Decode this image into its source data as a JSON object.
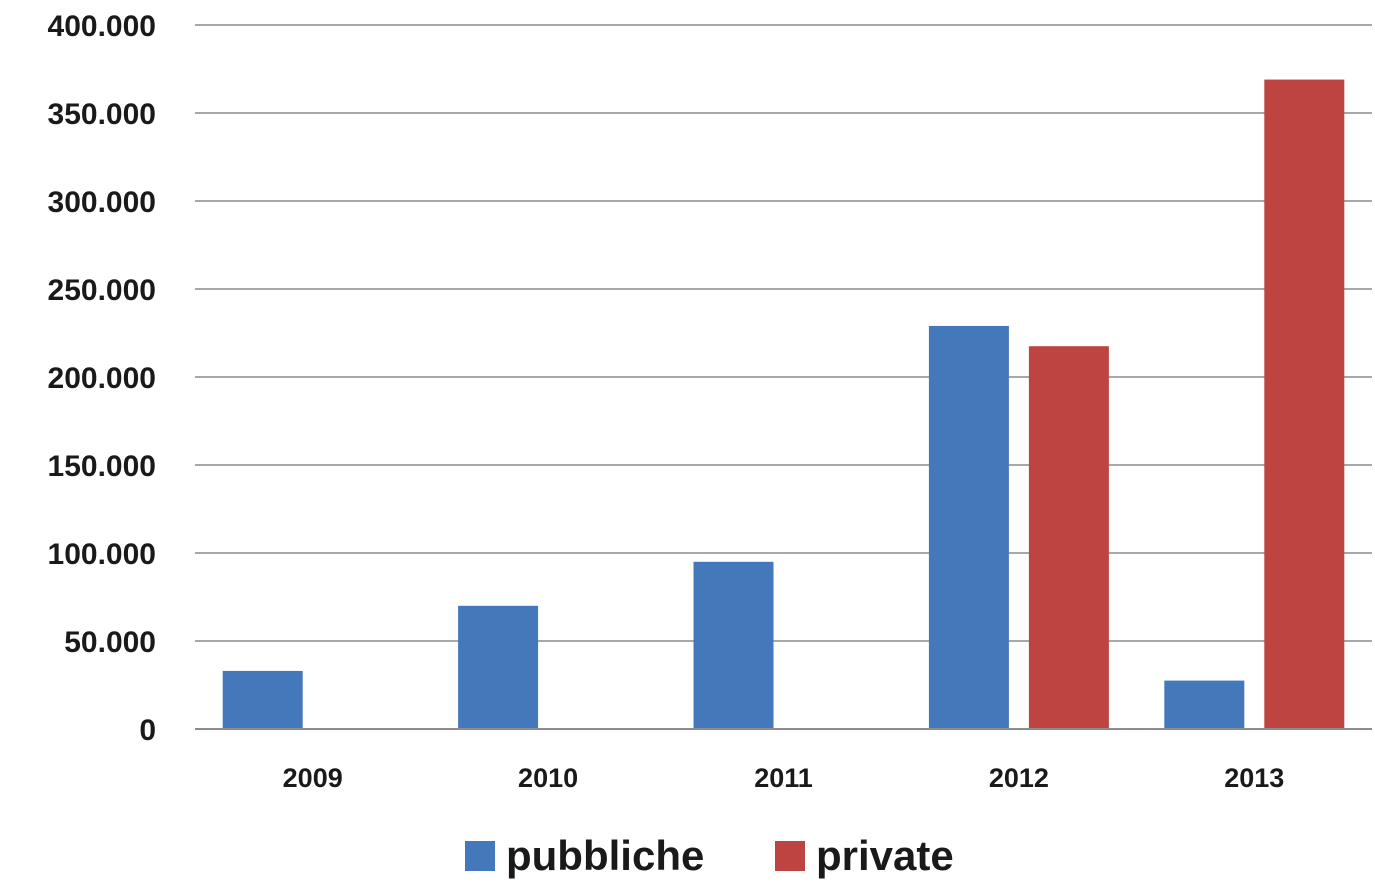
{
  "chart_data": {
    "type": "bar",
    "categories": [
      "2009",
      "2010",
      "2011",
      "2012",
      "2013"
    ],
    "series": [
      {
        "name": "pubbliche",
        "color": "#4378bb",
        "values": [
          33000,
          70000,
          95000,
          229000,
          27500
        ]
      },
      {
        "name": "private",
        "color": "#be4442",
        "values": [
          null,
          null,
          null,
          217500,
          369000
        ]
      }
    ],
    "ylim": [
      0,
      400000
    ],
    "yticks": [
      0,
      50000,
      100000,
      150000,
      200000,
      250000,
      300000,
      350000,
      400000
    ],
    "ytick_labels": [
      "0",
      "50.000",
      "100.000",
      "150.000",
      "200.000",
      "250.000",
      "300.000",
      "350.000",
      "400.000"
    ],
    "grid": true,
    "legend_position": "bottom"
  }
}
